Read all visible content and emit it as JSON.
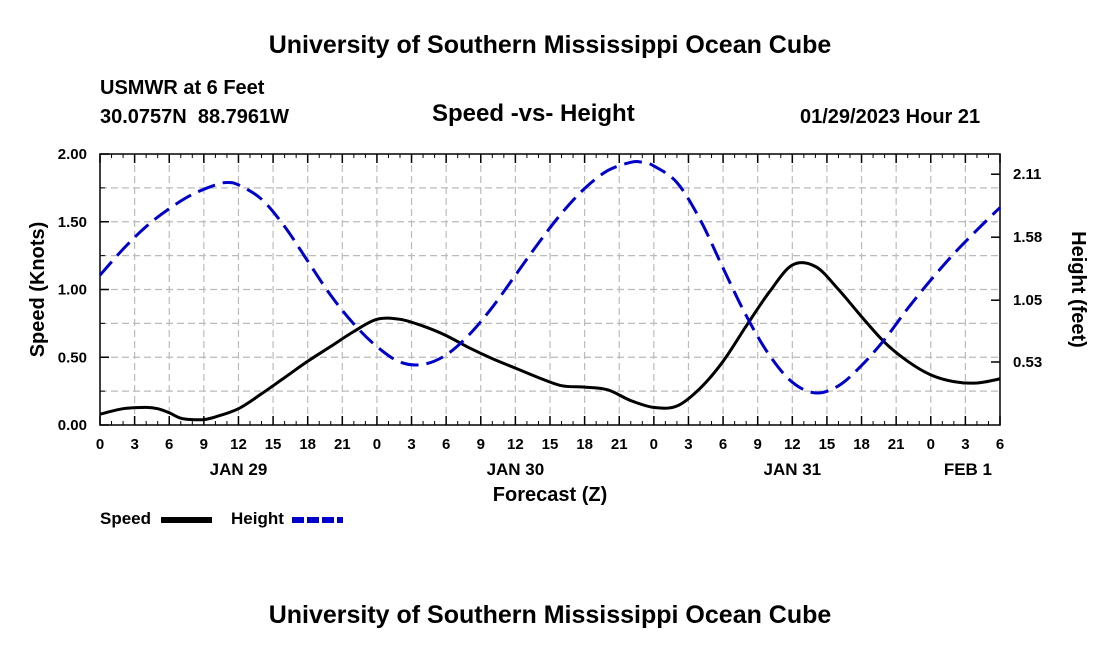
{
  "header": {
    "title": "University of Southern Mississippi Ocean Cube",
    "station": "USMWR at 6 Feet",
    "coords": "30.0757N  88.7961W",
    "subtitle": "Speed -vs- Height",
    "datetime": "01/29/2023 Hour 21"
  },
  "footer": {
    "title": "University of Southern Mississippi Ocean Cube"
  },
  "colors": {
    "speed": "#000000",
    "height": "#0000cc",
    "grid": "#bbbbbb"
  },
  "chart_data": {
    "type": "line",
    "title": "Speed -vs- Height",
    "xlabel": "Forecast (Z)",
    "ylabel": "Speed (Knots)",
    "y2label": "Height (feet)",
    "x_unit": "hours from JAN 29 00Z",
    "xlim": [
      0,
      78
    ],
    "ylim": [
      0,
      2.0
    ],
    "y2lim": [
      0.0,
      2.28
    ],
    "x_ticks": [
      0,
      3,
      6,
      9,
      12,
      15,
      18,
      21,
      24,
      27,
      30,
      33,
      36,
      39,
      42,
      45,
      48,
      51,
      54,
      57,
      60,
      63,
      66,
      69,
      72,
      75,
      78
    ],
    "x_tick_labels": [
      "0",
      "3",
      "6",
      "9",
      "12",
      "15",
      "18",
      "21",
      "0",
      "3",
      "6",
      "9",
      "12",
      "15",
      "18",
      "21",
      "0",
      "3",
      "6",
      "9",
      "12",
      "15",
      "18",
      "21",
      "0",
      "3",
      "6"
    ],
    "date_labels": [
      {
        "hour": 12,
        "label": "JAN 29"
      },
      {
        "hour": 36,
        "label": "JAN 30"
      },
      {
        "hour": 60,
        "label": "JAN 31"
      },
      {
        "hour": 78,
        "label": "FEB 1"
      }
    ],
    "y_ticks": [
      0,
      0.5,
      1.0,
      1.5,
      2.0
    ],
    "y_tick_labels": [
      "0.00",
      "0.50",
      "1.00",
      "1.50",
      "2.00"
    ],
    "y2_ticks": [
      0.53,
      1.05,
      1.58,
      2.11
    ],
    "y2_tick_labels": [
      "0.53",
      "1.05",
      "1.58",
      "2.11"
    ],
    "series": [
      {
        "name": "Speed",
        "axis": "left",
        "style": "solid",
        "x": [
          0,
          2,
          4,
          5,
          6,
          7,
          8,
          9,
          10,
          12,
          14,
          16,
          18,
          20,
          22,
          24,
          26,
          28,
          30,
          32,
          34,
          36,
          38,
          40,
          42,
          44,
          46,
          48,
          50,
          52,
          54,
          56,
          58,
          60,
          62,
          64,
          66,
          68,
          70,
          72,
          74,
          76,
          78
        ],
        "values": [
          0.08,
          0.12,
          0.13,
          0.12,
          0.09,
          0.05,
          0.04,
          0.04,
          0.06,
          0.12,
          0.23,
          0.35,
          0.47,
          0.58,
          0.69,
          0.78,
          0.78,
          0.73,
          0.66,
          0.57,
          0.49,
          0.42,
          0.35,
          0.29,
          0.28,
          0.26,
          0.18,
          0.13,
          0.14,
          0.27,
          0.47,
          0.73,
          0.98,
          1.18,
          1.17,
          1.0,
          0.8,
          0.61,
          0.47,
          0.37,
          0.32,
          0.31,
          0.34
        ]
      },
      {
        "name": "Height",
        "axis": "right",
        "style": "dashed",
        "x": [
          0,
          2,
          4,
          6,
          8,
          10,
          11,
          12,
          14,
          16,
          18,
          20,
          22,
          24,
          26,
          28,
          30,
          32,
          34,
          36,
          38,
          40,
          42,
          44,
          46,
          47,
          48,
          50,
          52,
          54,
          56,
          58,
          60,
          62,
          64,
          66,
          68,
          70,
          72,
          74,
          76,
          78
        ],
        "values": [
          1.26,
          1.48,
          1.67,
          1.82,
          1.94,
          2.02,
          2.04,
          2.02,
          1.9,
          1.67,
          1.38,
          1.09,
          0.85,
          0.66,
          0.53,
          0.51,
          0.59,
          0.76,
          0.99,
          1.26,
          1.53,
          1.78,
          1.99,
          2.14,
          2.21,
          2.21,
          2.18,
          2.04,
          1.73,
          1.32,
          0.92,
          0.59,
          0.36,
          0.27,
          0.33,
          0.5,
          0.72,
          0.98,
          1.22,
          1.44,
          1.64,
          1.83
        ]
      }
    ],
    "legend": [
      "Speed",
      "Height"
    ],
    "legend_position": "bottom-left",
    "grid": true
  }
}
